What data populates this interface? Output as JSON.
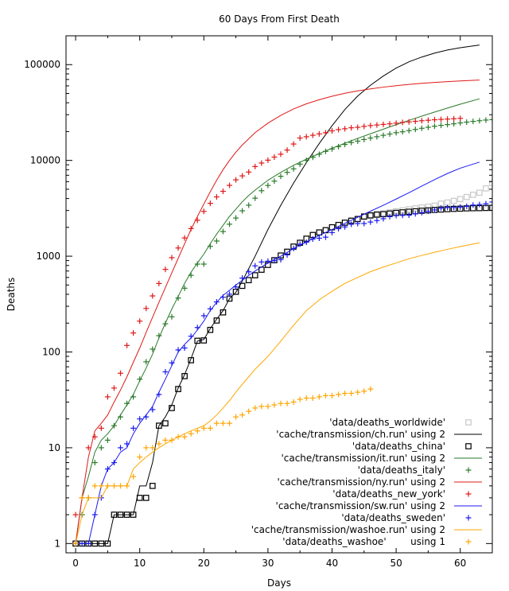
{
  "chart_data": {
    "type": "line",
    "title": "60 Days From First Death",
    "xlabel": "Days",
    "ylabel": "Deaths",
    "xlim": [
      -1.5,
      65
    ],
    "ylim": [
      0.8,
      200000
    ],
    "yscale": "log",
    "grid": false,
    "legend_position": "bottom-right",
    "xticks": [
      0,
      10,
      20,
      30,
      40,
      50,
      60
    ],
    "yticks": [
      1,
      10,
      100,
      1000,
      10000,
      100000
    ],
    "ytick_labels": [
      "1",
      "10",
      "100",
      "1000",
      "10000",
      "100000"
    ],
    "series": [
      {
        "name": "'data/deaths_worldwide'",
        "kind": "points",
        "marker": "square",
        "color": "#c8c8c8",
        "x": [
          0,
          1,
          2,
          3,
          4,
          5,
          6,
          7,
          8,
          9,
          10,
          11,
          12,
          13,
          14,
          15,
          16,
          17,
          18,
          19,
          20,
          21,
          22,
          23,
          24,
          25,
          26,
          27,
          28,
          29,
          30,
          31,
          32,
          33,
          34,
          35,
          36,
          37,
          38,
          39,
          40,
          41,
          42,
          43,
          44,
          45,
          46,
          47,
          48,
          49,
          50,
          51,
          52,
          53,
          54,
          55,
          56,
          57,
          58,
          59,
          60,
          61,
          62,
          63,
          64,
          65
        ],
        "y": [
          1,
          1,
          1,
          1,
          1,
          1,
          2,
          2,
          2,
          2,
          3,
          3,
          4,
          17,
          18,
          26,
          41,
          56,
          82,
          131,
          132,
          170,
          213,
          259,
          362,
          426,
          492,
          565,
          638,
          724,
          813,
          910,
          1018,
          1115,
          1261,
          1383,
          1526,
          1669,
          1775,
          1873,
          2009,
          2126,
          2247,
          2360,
          2460,
          2618,
          2699,
          2763,
          2800,
          2870,
          2943,
          3012,
          3087,
          3160,
          3231,
          3291,
          3374,
          3541,
          3634,
          3780,
          3950,
          4150,
          4380,
          4600,
          5100,
          5800
        ]
      },
      {
        "name": "'cache/transmission/ch.run' using 2",
        "kind": "line",
        "color": "#000000",
        "x": [
          0,
          5,
          6,
          9,
          10,
          11,
          12,
          13,
          14,
          15,
          16,
          17,
          18,
          19,
          20,
          21,
          22,
          23,
          24,
          25,
          26,
          28,
          30,
          32,
          34,
          36,
          38,
          40,
          42,
          44,
          46,
          48,
          50,
          52,
          54,
          56,
          58,
          60,
          63
        ],
        "y": [
          1,
          1,
          2,
          2,
          4,
          4,
          7,
          17,
          21,
          28,
          42,
          58,
          85,
          130,
          135,
          175,
          220,
          270,
          360,
          420,
          550,
          1000,
          1900,
          3400,
          5800,
          9500,
          15000,
          23000,
          34000,
          47000,
          61000,
          76000,
          92000,
          107000,
          120000,
          132000,
          142000,
          150000,
          160000
        ]
      },
      {
        "name": "'data/deaths_china'",
        "kind": "points",
        "marker": "square",
        "color": "#000000",
        "x": [
          0,
          1,
          2,
          3,
          4,
          5,
          6,
          7,
          8,
          9,
          10,
          11,
          12,
          13,
          14,
          15,
          16,
          17,
          18,
          19,
          20,
          21,
          22,
          23,
          24,
          25,
          26,
          27,
          28,
          29,
          30,
          31,
          32,
          33,
          34,
          35,
          36,
          37,
          38,
          39,
          40,
          41,
          42,
          43,
          44,
          45,
          46,
          47,
          48,
          49,
          50,
          51,
          52,
          53,
          54,
          55,
          56,
          57,
          58,
          59,
          60,
          61,
          62,
          63,
          64,
          65
        ],
        "y": [
          1,
          1,
          1,
          1,
          1,
          1,
          2,
          2,
          2,
          2,
          3,
          3,
          4,
          17,
          18,
          26,
          41,
          56,
          82,
          131,
          132,
          170,
          213,
          259,
          361,
          425,
          490,
          562,
          632,
          722,
          811,
          908,
          1016,
          1113,
          1259,
          1380,
          1523,
          1665,
          1770,
          1868,
          2004,
          2118,
          2236,
          2345,
          2442,
          2592,
          2663,
          2715,
          2744,
          2788,
          2835,
          2870,
          2912,
          2943,
          2981,
          3012,
          3042,
          3070,
          3097,
          3119,
          3136,
          3158,
          3169,
          3176,
          3189,
          3199
        ]
      },
      {
        "name": "'cache/transmission/it.run' using 2",
        "kind": "line",
        "color": "#2a7a2a",
        "x": [
          0,
          1,
          2,
          3,
          4,
          5,
          6,
          7,
          8,
          9,
          10,
          11,
          12,
          13,
          14,
          15,
          16,
          17,
          18,
          19,
          20,
          21,
          22,
          23,
          24,
          25,
          26,
          27,
          28,
          30,
          32,
          34,
          36,
          38,
          40,
          42,
          44,
          46,
          48,
          50,
          52,
          54,
          56,
          58,
          60,
          63
        ],
        "y": [
          1,
          3,
          5,
          9,
          12,
          14,
          17,
          22,
          28,
          36,
          50,
          68,
          95,
          140,
          200,
          280,
          380,
          520,
          680,
          850,
          1050,
          1350,
          1700,
          2100,
          2600,
          3100,
          3700,
          4300,
          4900,
          6200,
          7500,
          8900,
          10300,
          11800,
          13400,
          15100,
          17000,
          19000,
          21200,
          23600,
          26200,
          29000,
          32000,
          35200,
          38600,
          44000
        ]
      },
      {
        "name": "'data/deaths_italy'",
        "kind": "points",
        "marker": "plus",
        "color": "#2a7a2a",
        "x": [
          0,
          1,
          2,
          3,
          4,
          5,
          6,
          7,
          8,
          9,
          10,
          11,
          12,
          13,
          14,
          15,
          16,
          17,
          18,
          19,
          20,
          21,
          22,
          23,
          24,
          25,
          26,
          27,
          28,
          29,
          30,
          31,
          32,
          33,
          34,
          35,
          36,
          37,
          38,
          39,
          40,
          41,
          42,
          43,
          44,
          45,
          46,
          47,
          48,
          49,
          50,
          51,
          52,
          53,
          54,
          55,
          56,
          57,
          58,
          59,
          60,
          61,
          62,
          63,
          64,
          65
        ],
        "y": [
          1,
          2,
          3,
          7,
          10,
          12,
          17,
          21,
          29,
          34,
          52,
          79,
          107,
          148,
          197,
          233,
          366,
          463,
          631,
          827,
          827,
          1266,
          1441,
          1809,
          2158,
          2503,
          2978,
          3405,
          4032,
          4825,
          5476,
          6077,
          6820,
          7503,
          8165,
          9134,
          10023,
          10779,
          11591,
          12428,
          13155,
          13915,
          14681,
          15362,
          15887,
          16523,
          17127,
          17669,
          18279,
          18849,
          19468,
          19899,
          20465,
          21067,
          21645,
          22170,
          22745,
          23227,
          23660,
          24114,
          24648,
          25085,
          25549,
          25969,
          26384,
          26644
        ]
      },
      {
        "name": "'cache/transmission/ny.run' using 2",
        "kind": "line",
        "color": "#e01818",
        "x": [
          0,
          1,
          2,
          3,
          4,
          5,
          6,
          7,
          8,
          9,
          10,
          11,
          12,
          13,
          14,
          15,
          16,
          17,
          18,
          19,
          20,
          21,
          22,
          23,
          24,
          25,
          26,
          28,
          30,
          32,
          34,
          36,
          38,
          40,
          42,
          44,
          46,
          48,
          50,
          52,
          54,
          56,
          58,
          60,
          63
        ],
        "y": [
          1,
          3,
          8,
          15,
          18,
          22,
          30,
          40,
          55,
          78,
          110,
          160,
          230,
          330,
          470,
          670,
          950,
          1350,
          1900,
          2600,
          3500,
          4700,
          6200,
          8000,
          10000,
          12200,
          14500,
          19500,
          24500,
          29500,
          34500,
          39000,
          43000,
          46800,
          50200,
          53200,
          55800,
          58200,
          60300,
          62200,
          63800,
          65200,
          66400,
          67500,
          69000
        ]
      },
      {
        "name": "'data/deaths_new_york'",
        "kind": "points",
        "marker": "plus",
        "color": "#e01818",
        "x": [
          0,
          1,
          2,
          3,
          4,
          5,
          6,
          7,
          8,
          9,
          10,
          11,
          12,
          13,
          14,
          15,
          16,
          17,
          18,
          19,
          20,
          21,
          22,
          23,
          24,
          25,
          26,
          27,
          28,
          29,
          30,
          31,
          32,
          33,
          34,
          35,
          36,
          37,
          38,
          39,
          40,
          41,
          42,
          43,
          44,
          45,
          46,
          47,
          48,
          49,
          50,
          51,
          52,
          53,
          54,
          55,
          56,
          57,
          58,
          59,
          60
        ],
        "y": [
          2,
          3,
          10,
          13,
          16,
          34,
          42,
          60,
          117,
          158,
          210,
          285,
          385,
          519,
          728,
          965,
          1218,
          1550,
          1941,
          2373,
          2935,
          3565,
          4159,
          4758,
          5489,
          6268,
          6898,
          7560,
          8627,
          9385,
          10056,
          10834,
          11617,
          12822,
          14832,
          17131,
          17671,
          18298,
          18909,
          19453,
          20354,
          20982,
          21411,
          21908,
          22170,
          22668,
          23112,
          23430,
          23780,
          24086,
          24495,
          24920,
          25240,
          25591,
          25956,
          26243,
          26584,
          26812,
          27005,
          27217,
          27478
        ]
      },
      {
        "name": "'cache/transmission/sw.run' using 2",
        "kind": "line",
        "color": "#1a1af0",
        "x": [
          0,
          1,
          2,
          3,
          4,
          5,
          6,
          7,
          8,
          9,
          10,
          11,
          12,
          13,
          14,
          15,
          16,
          17,
          18,
          19,
          20,
          21,
          22,
          23,
          24,
          25,
          26,
          27,
          28,
          30,
          32,
          34,
          36,
          38,
          40,
          42,
          44,
          46,
          48,
          50,
          52,
          54,
          56,
          58,
          60,
          63
        ],
        "y": [
          1,
          1,
          1,
          2,
          4,
          6,
          7,
          9,
          10,
          14,
          18,
          22,
          27,
          38,
          52,
          72,
          100,
          120,
          140,
          170,
          210,
          270,
          330,
          390,
          440,
          500,
          560,
          630,
          700,
          850,
          1000,
          1200,
          1400,
          1650,
          1900,
          2200,
          2550,
          2950,
          3400,
          3950,
          4600,
          5400,
          6300,
          7300,
          8300,
          9600
        ]
      },
      {
        "name": "'data/deaths_sweden'",
        "kind": "points",
        "marker": "plus",
        "color": "#1a1af0",
        "x": [
          0,
          1,
          2,
          3,
          4,
          5,
          6,
          7,
          8,
          9,
          10,
          11,
          12,
          13,
          14,
          15,
          16,
          17,
          18,
          19,
          20,
          21,
          22,
          23,
          24,
          25,
          26,
          27,
          28,
          29,
          30,
          31,
          32,
          33,
          34,
          35,
          36,
          37,
          38,
          39,
          40,
          41,
          42,
          43,
          44,
          45,
          46,
          47,
          48,
          49,
          50,
          51,
          52,
          53,
          54,
          55,
          56,
          57,
          58,
          59,
          60,
          61,
          62,
          63,
          64,
          65
        ],
        "y": [
          1,
          1,
          1,
          2,
          3,
          6,
          7,
          10,
          11,
          16,
          20,
          21,
          25,
          36,
          62,
          77,
          105,
          110,
          146,
          180,
          239,
          282,
          333,
          373,
          401,
          477,
          591,
          687,
          793,
          870,
          887,
          899,
          919,
          1033,
          1203,
          1333,
          1400,
          1511,
          1540,
          1580,
          1765,
          1937,
          2021,
          2152,
          2192,
          2194,
          2274,
          2355,
          2462,
          2586,
          2653,
          2669,
          2679,
          2769,
          2854,
          2941,
          3040,
          3175,
          3220,
          3225,
          3256,
          3313,
          3420,
          3460,
          3529,
          3674
        ]
      },
      {
        "name": "'cache/transmission/washoe.run' using 2",
        "kind": "line",
        "color": "#ffa500",
        "x": [
          0,
          1,
          2,
          3,
          4,
          5,
          6,
          7,
          8,
          9,
          10,
          11,
          12,
          13,
          14,
          15,
          16,
          17,
          18,
          19,
          20,
          21,
          22,
          23,
          24,
          25,
          26,
          27,
          28,
          30,
          32,
          34,
          36,
          38,
          40,
          42,
          44,
          46,
          48,
          50,
          52,
          54,
          56,
          58,
          60,
          63
        ],
        "y": [
          1,
          2,
          3,
          3,
          3,
          4,
          4,
          4,
          4,
          6,
          7,
          8,
          9,
          10,
          11,
          12,
          13,
          14,
          15,
          16,
          17,
          19,
          22,
          26,
          31,
          38,
          46,
          55,
          66,
          90,
          130,
          190,
          270,
          350,
          430,
          520,
          600,
          690,
          770,
          850,
          940,
          1020,
          1100,
          1180,
          1260,
          1380
        ]
      },
      {
        "name": "'data/deaths_washoe'        using 1",
        "kind": "points",
        "marker": "plus",
        "color": "#ffa500",
        "x": [
          0,
          1,
          2,
          3,
          4,
          5,
          6,
          7,
          8,
          9,
          10,
          11,
          12,
          13,
          14,
          15,
          16,
          17,
          18,
          19,
          20,
          21,
          22,
          23,
          24,
          25,
          26,
          27,
          28,
          29,
          30,
          31,
          32,
          33,
          34,
          35,
          36,
          37,
          38,
          39,
          40,
          41,
          42,
          43,
          44,
          45,
          46
        ],
        "y": [
          1,
          3,
          3,
          4,
          4,
          4,
          4,
          4,
          4,
          5,
          8,
          10,
          10,
          11,
          12,
          12,
          13,
          13,
          14,
          15,
          16,
          16,
          18,
          18,
          18,
          21,
          22,
          24,
          26,
          27,
          27,
          28,
          29,
          29,
          30,
          32,
          33,
          33,
          34,
          35,
          35,
          36,
          37,
          37,
          38,
          39,
          41
        ]
      }
    ]
  }
}
